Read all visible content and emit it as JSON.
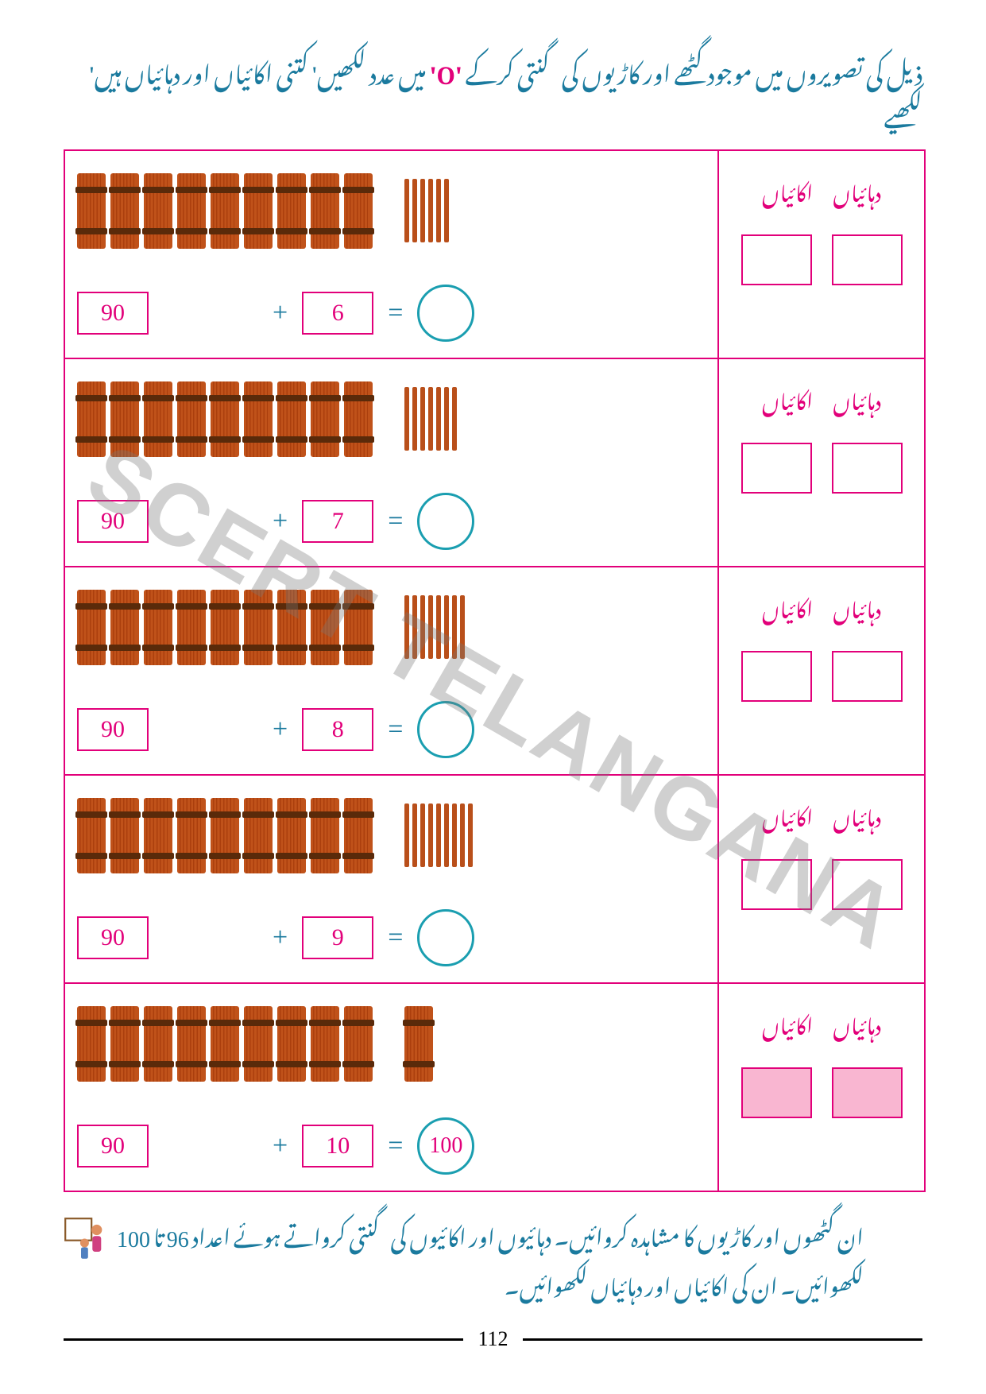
{
  "instruction_pre": "ذیل کی تصویروں میں موجود گٹھے اور کاڑیوں کی گنتی کرکے ",
  "instruction_o": "'O'",
  "instruction_post": " میں عدد لکھیں' کتنی اکائیاں اور دہائیاں ہیں' لکھیے",
  "labels": {
    "units": "اکائیاں",
    "tens": "دہائیاں"
  },
  "rows": [
    {
      "bundles": 9,
      "sticks": 6,
      "left_val": "90",
      "right_val": "6",
      "circle_val": "",
      "filled": false
    },
    {
      "bundles": 9,
      "sticks": 7,
      "left_val": "90",
      "right_val": "7",
      "circle_val": "",
      "filled": false
    },
    {
      "bundles": 9,
      "sticks": 8,
      "left_val": "90",
      "right_val": "8",
      "circle_val": "",
      "filled": false
    },
    {
      "bundles": 9,
      "sticks": 9,
      "left_val": "90",
      "right_val": "9",
      "circle_val": "",
      "filled": false
    },
    {
      "bundles": 9,
      "sticks": 1,
      "left_val": "90",
      "right_val": "10",
      "circle_val": "100",
      "filled": true,
      "bundle_extra": true
    }
  ],
  "plus": "+",
  "equals": "=",
  "footer_line1_a": "ان گٹھوں اور کاڑیوں کا مشاہدہ کروائیں۔ دہائیوں اور اکائیوں کی گنتی کرواتے ہوئے اعداد ",
  "footer_num_a": "96",
  "footer_mid": " تا ",
  "footer_num_b": "100",
  "footer_line2": "لکھوائیں۔ ان کی اکائیاں اور دہائیاں لکھوائیں۔",
  "page_number": "112",
  "watermark": "SCERT TELANGANA"
}
